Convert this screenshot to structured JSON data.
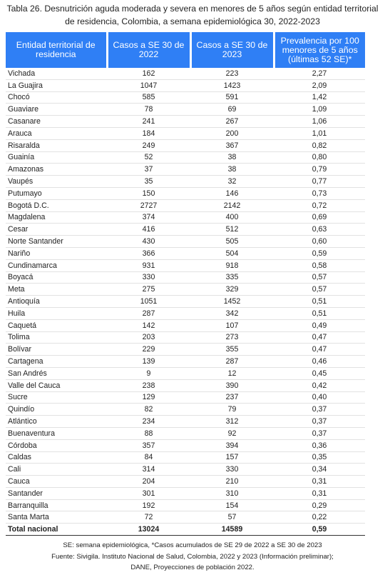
{
  "title": "Tabla 26. Desnutrición aguda moderada y severa en menores de 5 años según entidad territorial de residencia, Colombia, a semana epidemiológica 30, 2022-2023",
  "table": {
    "header": [
      "Entidad territorial de residencia",
      "Casos a SE 30 de 2022",
      "Casos a SE 30 de 2023",
      "Prevalencia por 100 menores de 5 años (últimas 52 SE)*"
    ],
    "rows": [
      [
        "Vichada",
        "162",
        "223",
        "2,27"
      ],
      [
        "La Guajira",
        "1047",
        "1423",
        "2,09"
      ],
      [
        "Chocó",
        "585",
        "591",
        "1,42"
      ],
      [
        "Guaviare",
        "78",
        "69",
        "1,09"
      ],
      [
        "Casanare",
        "241",
        "267",
        "1,06"
      ],
      [
        "Arauca",
        "184",
        "200",
        "1,01"
      ],
      [
        "Risaralda",
        "249",
        "367",
        "0,82"
      ],
      [
        "Guainía",
        "52",
        "38",
        "0,80"
      ],
      [
        "Amazonas",
        "37",
        "38",
        "0,79"
      ],
      [
        "Vaupés",
        "35",
        "32",
        "0,77"
      ],
      [
        "Putumayo",
        "150",
        "146",
        "0,73"
      ],
      [
        "Bogotá D.C.",
        "2727",
        "2142",
        "0,72"
      ],
      [
        "Magdalena",
        "374",
        "400",
        "0,69"
      ],
      [
        "Cesar",
        "416",
        "512",
        "0,63"
      ],
      [
        "Norte Santander",
        "430",
        "505",
        "0,60"
      ],
      [
        "Nariño",
        "366",
        "504",
        "0,59"
      ],
      [
        "Cundinamarca",
        "931",
        "918",
        "0,58"
      ],
      [
        "Boyacá",
        "330",
        "335",
        "0,57"
      ],
      [
        "Meta",
        "275",
        "329",
        "0,57"
      ],
      [
        "Antioquía",
        "1051",
        "1452",
        "0,51"
      ],
      [
        "Huila",
        "287",
        "342",
        "0,51"
      ],
      [
        "Caquetá",
        "142",
        "107",
        "0,49"
      ],
      [
        "Tolima",
        "203",
        "273",
        "0,47"
      ],
      [
        "Bolívar",
        "229",
        "355",
        "0,47"
      ],
      [
        "Cartagena",
        "139",
        "287",
        "0,46"
      ],
      [
        "San Andrés",
        "9",
        "12",
        "0,45"
      ],
      [
        "Valle del Cauca",
        "238",
        "390",
        "0,42"
      ],
      [
        "Sucre",
        "129",
        "237",
        "0,40"
      ],
      [
        "Quindío",
        "82",
        "79",
        "0,37"
      ],
      [
        "Atlántico",
        "234",
        "312",
        "0,37"
      ],
      [
        "Buenaventura",
        "88",
        "92",
        "0,37"
      ],
      [
        "Córdoba",
        "357",
        "394",
        "0,36"
      ],
      [
        "Caldas",
        "84",
        "157",
        "0,35"
      ],
      [
        "Cali",
        "314",
        "330",
        "0,34"
      ],
      [
        "Cauca",
        "204",
        "210",
        "0,31"
      ],
      [
        "Santander",
        "301",
        "310",
        "0,31"
      ],
      [
        "Barranquilla",
        "192",
        "154",
        "0,29"
      ],
      [
        "Santa Marta",
        "72",
        "57",
        "0,22"
      ]
    ],
    "total": [
      "Total nacional",
      "13024",
      "14589",
      "0,59"
    ]
  },
  "notes": [
    "SE: semana epidemiológica, *Casos acumulados de SE 29 de 2022 a SE 30 de 2023",
    "Fuente: Sivigila. Instituto Nacional de Salud, Colombia, 2022 y 2023 (Información preliminar);",
    "DANE, Proyecciones de población 2022."
  ]
}
